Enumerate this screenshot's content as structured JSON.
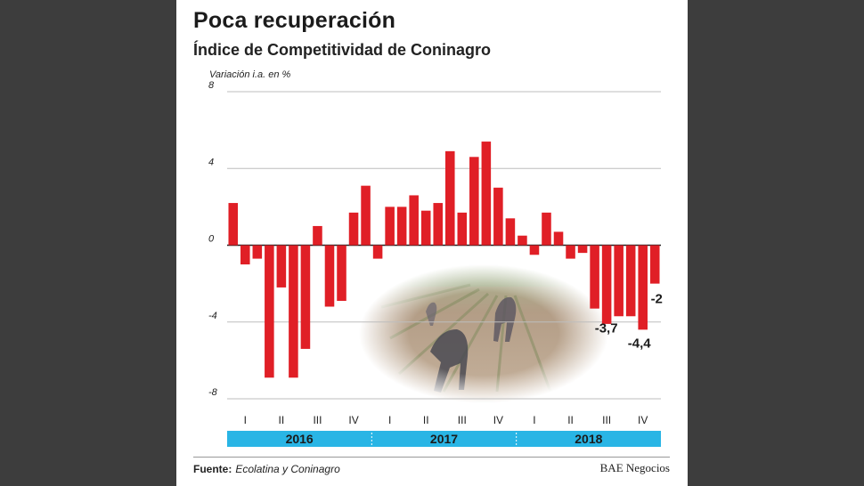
{
  "page": {
    "title": "Poca recuperación",
    "subtitle": "Índice de Competitividad de Coninagro",
    "source_label": "Fuente:",
    "source_text": "Ecolatina y Coninagro",
    "credit": "BAE Negocios"
  },
  "colors": {
    "bar": "#e01f26",
    "year_band": "#29b5e5",
    "grid": "#bdbdbd",
    "axis": "#222222",
    "card_background": "#ffffff",
    "outer_background": "#3d3d3d"
  },
  "chart_data": {
    "type": "bar",
    "title": "Poca recuperación",
    "subtitle": "Índice de Competitividad de Coninagro",
    "ylabel": "Variación i.a. en %",
    "ylim": [
      -8,
      8
    ],
    "yticks": [
      8,
      4,
      0,
      -4,
      -8
    ],
    "ytick_labels": [
      "8",
      "4",
      "0",
      "-4",
      "-8"
    ],
    "grid": true,
    "values": [
      2.2,
      -1.0,
      -0.7,
      -6.9,
      -2.2,
      -6.9,
      -5.4,
      1.0,
      -3.2,
      -2.9,
      1.7,
      3.1,
      -0.7,
      2.0,
      2.0,
      2.6,
      1.8,
      2.2,
      4.9,
      1.7,
      4.6,
      5.4,
      3.0,
      1.4,
      0.5,
      -0.5,
      1.7,
      0.7,
      -0.7,
      -0.4,
      -3.3,
      -4.1,
      -3.7,
      -3.7,
      -4.4,
      -2.0
    ],
    "data_labels": [
      {
        "index": 32,
        "text": "-3,7"
      },
      {
        "index": 34,
        "text": "-4,4"
      },
      {
        "index": 35,
        "text": "-2"
      }
    ],
    "quarters": [
      "I",
      "II",
      "III",
      "IV",
      "I",
      "II",
      "III",
      "IV",
      "I",
      "II",
      "III",
      "IV"
    ],
    "years": [
      "2016",
      "2017",
      "2018"
    ]
  }
}
